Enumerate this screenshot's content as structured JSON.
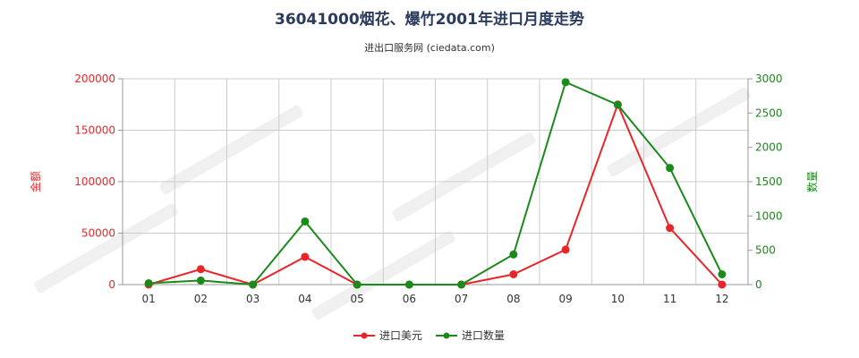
{
  "header": {
    "title": "36041000烟花、爆竹2001年进口月度走势",
    "subtitle": "进出口服务网 (ciedata.com)"
  },
  "colors": {
    "left_axis": "#e8262a",
    "right_axis": "#1a8a1a",
    "grid": "#cccccc",
    "axis_line": "#999999"
  },
  "chart_data": {
    "type": "line",
    "categories": [
      "01",
      "02",
      "03",
      "04",
      "05",
      "06",
      "07",
      "08",
      "09",
      "10",
      "11",
      "12"
    ],
    "y_left": {
      "label": "金额",
      "ticks": [
        "0",
        "50000",
        "100000",
        "150000",
        "200000"
      ],
      "range": [
        0,
        200000
      ]
    },
    "y_right": {
      "label": "数量",
      "ticks": [
        "0",
        "500",
        "1000",
        "1500",
        "2000",
        "2500",
        "3000"
      ],
      "range": [
        0,
        3000
      ]
    },
    "series": [
      {
        "name": "进口美元",
        "axis": "left",
        "color": "#e8262a",
        "values": [
          0,
          15000,
          0,
          27000,
          0,
          0,
          0,
          10000,
          34000,
          175000,
          55000,
          0
        ]
      },
      {
        "name": "进口数量",
        "axis": "right",
        "color": "#1a8a1a",
        "values": [
          20,
          60,
          0,
          920,
          0,
          0,
          0,
          440,
          2950,
          2620,
          1700,
          150
        ]
      }
    ],
    "grid": true,
    "legend_position": "bottom-center"
  }
}
